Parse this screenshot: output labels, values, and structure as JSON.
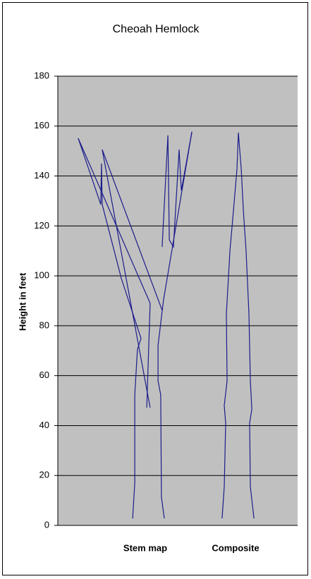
{
  "chart_data": {
    "type": "line",
    "title": "Cheoah Hemlock",
    "ylabel": "Height in feet",
    "annotations": [
      "Stem map",
      "Composite"
    ],
    "xlim": [
      0,
      100
    ],
    "ylim": [
      0,
      180
    ],
    "yticks": [
      0,
      20,
      40,
      60,
      80,
      100,
      120,
      140,
      160,
      180
    ],
    "grid": true,
    "background": "#c0c0c0",
    "series": [
      {
        "color": "#1c1c8c",
        "x": [
          31.2,
          32.1,
          32.1,
          33.2,
          34.7,
          26.5,
          18.5,
          18.2,
          17.9,
          8.5
        ],
        "values": [
          2.8,
          17.0,
          52.3,
          70.6,
          74.9,
          98.9,
          128.6,
          145.0,
          128.6,
          155.1
        ]
      },
      {
        "color": "#1c1c8c",
        "x": [
          8.5,
          38.5,
          37.1
        ],
        "values": [
          155.1,
          89.0,
          47.2
        ]
      },
      {
        "color": "#1c1c8c",
        "x": [
          43.5,
          18.5,
          38.5
        ],
        "values": [
          86.2,
          150.6,
          47.2
        ]
      },
      {
        "color": "#1c1c8c",
        "x": [
          44.4,
          43.2,
          42.9,
          41.8,
          41.8,
          44.1,
          55.9
        ],
        "values": [
          2.8,
          11.3,
          52.3,
          57.9,
          72.1,
          90.4,
          157.7
        ]
      },
      {
        "color": "#1c1c8c",
        "x": [
          43.5,
          45.9,
          46.5,
          48.2,
          50.6,
          51.5,
          55.9
        ],
        "values": [
          111.6,
          156.3,
          114.4,
          111.6,
          150.6,
          134.2,
          157.7
        ]
      },
      {
        "color": "#1c1c8c",
        "x": [
          68.5,
          69.4,
          70.0,
          69.4,
          70.6,
          70.3,
          71.8,
          73.2,
          74.7,
          75.3,
          76.5,
          77.4,
          78.5,
          79.7,
          80.3,
          80.9,
          80.0,
          80.3,
          81.8
        ],
        "values": [
          2.8,
          15.5,
          41.0,
          48.0,
          57.9,
          84.8,
          110.2,
          125.7,
          142.7,
          157.4,
          142.7,
          125.7,
          110.2,
          84.8,
          57.9,
          46.6,
          41.0,
          15.5,
          2.8
        ]
      }
    ]
  }
}
